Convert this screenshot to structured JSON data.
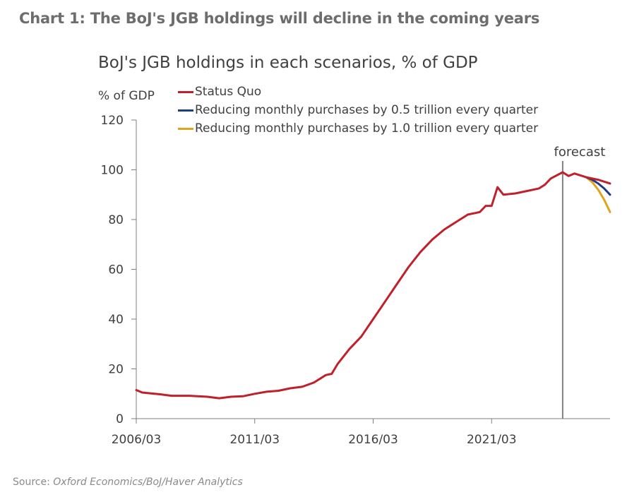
{
  "header": {
    "title": "Chart 1: The BoJ's JGB holdings will decline in the coming years"
  },
  "source": {
    "label": "Source:",
    "text": "Oxford Economics/BoJ/Haver Analytics"
  },
  "chart_data": {
    "type": "line",
    "title": "BoJ's JGB holdings in each scenarios, % of GDP",
    "ylabel": "% of GDP",
    "xlabel": "",
    "ylim": [
      0,
      120
    ],
    "yticks": [
      0,
      20,
      40,
      60,
      80,
      100,
      120
    ],
    "xtick_labels": [
      "2006/03",
      "2011/03",
      "2016/03",
      "2021/03"
    ],
    "xlim": [
      "2006-03",
      "2026-03"
    ],
    "grid": false,
    "legend_position": "top",
    "annotation": {
      "text": "forecast",
      "x": "2024-03"
    },
    "series": [
      {
        "name": "Status Quo",
        "color": "#c0202a",
        "points": [
          [
            "2006-03",
            11.5
          ],
          [
            "2006-06",
            10.5
          ],
          [
            "2007-03",
            9.8
          ],
          [
            "2007-09",
            9.2
          ],
          [
            "2008-06",
            9.2
          ],
          [
            "2009-03",
            8.8
          ],
          [
            "2009-09",
            8.2
          ],
          [
            "2010-03",
            8.8
          ],
          [
            "2010-09",
            9.0
          ],
          [
            "2011-03",
            10.0
          ],
          [
            "2011-09",
            10.8
          ],
          [
            "2012-03",
            11.2
          ],
          [
            "2012-09",
            12.2
          ],
          [
            "2013-03",
            12.8
          ],
          [
            "2013-09",
            14.5
          ],
          [
            "2014-03",
            17.5
          ],
          [
            "2014-06",
            18.0
          ],
          [
            "2014-09",
            22.0
          ],
          [
            "2015-03",
            28.0
          ],
          [
            "2015-09",
            33.0
          ],
          [
            "2016-03",
            40.0
          ],
          [
            "2016-09",
            47.0
          ],
          [
            "2017-03",
            54.0
          ],
          [
            "2017-09",
            61.0
          ],
          [
            "2018-03",
            67.0
          ],
          [
            "2018-09",
            72.0
          ],
          [
            "2019-03",
            76.0
          ],
          [
            "2019-09",
            79.0
          ],
          [
            "2020-03",
            82.0
          ],
          [
            "2020-06",
            82.5
          ],
          [
            "2020-09",
            83.0
          ],
          [
            "2020-12",
            85.5
          ],
          [
            "2021-03",
            85.5
          ],
          [
            "2021-06",
            93.0
          ],
          [
            "2021-09",
            90.0
          ],
          [
            "2022-03",
            90.5
          ],
          [
            "2022-09",
            91.5
          ],
          [
            "2023-03",
            92.5
          ],
          [
            "2023-06",
            94.0
          ],
          [
            "2023-09",
            96.5
          ],
          [
            "2024-03",
            99.0
          ],
          [
            "2024-06",
            97.5
          ],
          [
            "2024-09",
            98.5
          ],
          [
            "2025-03",
            97.0
          ],
          [
            "2025-09",
            96.0
          ],
          [
            "2026-03",
            94.5
          ]
        ]
      },
      {
        "name": "Reducing monthly purchases by 0.5 trillion every quarter",
        "color": "#1f3c88",
        "points": [
          [
            "2025-03",
            97.0
          ],
          [
            "2025-06",
            96.0
          ],
          [
            "2025-09",
            94.5
          ],
          [
            "2025-12",
            92.5
          ],
          [
            "2026-03",
            90.0
          ]
        ]
      },
      {
        "name": "Reducing monthly purchases by 1.0 trillion every quarter",
        "color": "#e0a51f",
        "points": [
          [
            "2025-03",
            97.0
          ],
          [
            "2025-06",
            95.0
          ],
          [
            "2025-09",
            92.0
          ],
          [
            "2025-12",
            88.0
          ],
          [
            "2026-03",
            83.0
          ]
        ]
      }
    ]
  }
}
